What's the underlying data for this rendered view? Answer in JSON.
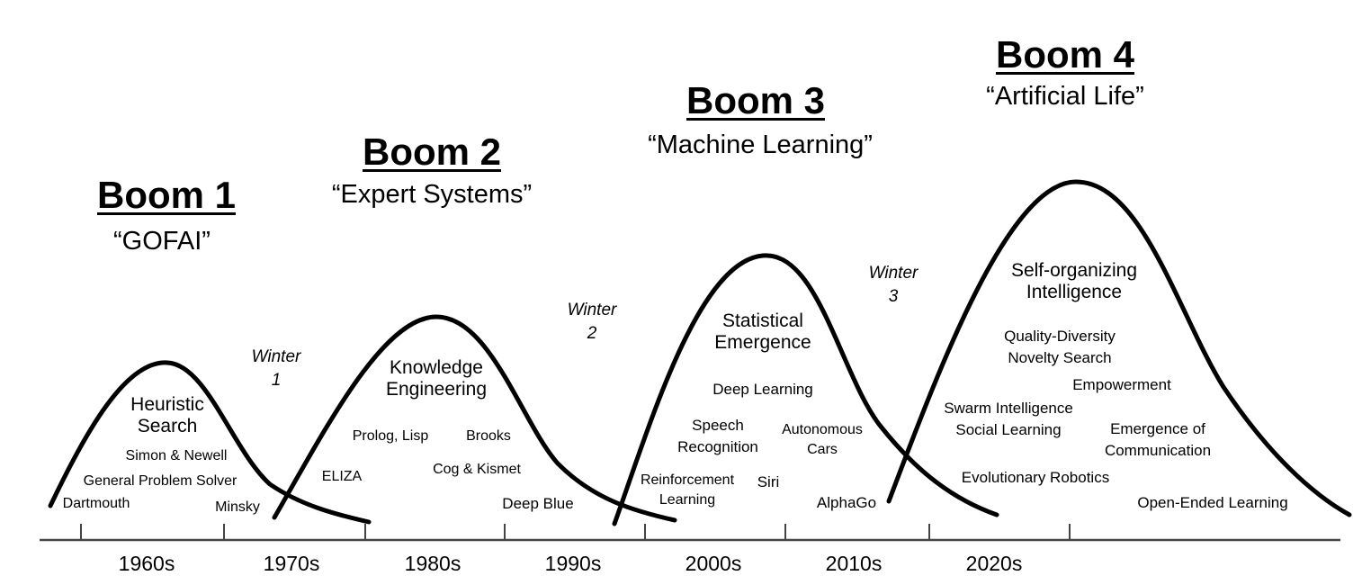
{
  "booms": [
    {
      "title": "Boom 1",
      "subtitle": "“GOFAI”"
    },
    {
      "title": "Boom 2",
      "subtitle": "“Expert Systems”"
    },
    {
      "title": "Boom 3",
      "subtitle": "“Machine Learning”"
    },
    {
      "title": "Boom 4",
      "subtitle": "“Artificial Life”"
    }
  ],
  "winters": [
    {
      "line1": "Winter",
      "line2": "1"
    },
    {
      "line1": "Winter",
      "line2": "2"
    },
    {
      "line1": "Winter",
      "line2": "3"
    }
  ],
  "eras": [
    {
      "line1": "Heuristic",
      "line2": "Search"
    },
    {
      "line1": "Knowledge",
      "line2": "Engineering"
    },
    {
      "line1": "Statistical",
      "line2": "Emergence"
    },
    {
      "line1": "Self-organizing",
      "line2": "Intelligence"
    }
  ],
  "events": {
    "simon_newell": "Simon & Newell",
    "gps": "General Problem Solver",
    "dartmouth": "Dartmouth",
    "minsky": "Minsky",
    "eliza": "ELIZA",
    "prolog_lisp": "Prolog, Lisp",
    "brooks": "Brooks",
    "cog_kismet": "Cog & Kismet",
    "deep_blue": "Deep Blue",
    "deep_learning": "Deep Learning",
    "speech_1": "Speech",
    "speech_2": "Recognition",
    "autonomous_1": "Autonomous",
    "autonomous_2": "Cars",
    "rl_1": "Reinforcement",
    "rl_2": "Learning",
    "siri": "Siri",
    "alphago": "AlphaGo",
    "qd_1": "Quality-Diversity",
    "qd_2": "Novelty Search",
    "empowerment": "Empowerment",
    "swarm_1": "Swarm Intelligence",
    "swarm_2": "Social Learning",
    "emergence_1": "Emergence of",
    "emergence_2": "Communication",
    "evo_robotics": "Evolutionary Robotics",
    "open_ended": "Open-Ended Learning"
  },
  "decades": [
    "1960s",
    "1970s",
    "1980s",
    "1990s",
    "2000s",
    "2010s",
    "2020s"
  ]
}
